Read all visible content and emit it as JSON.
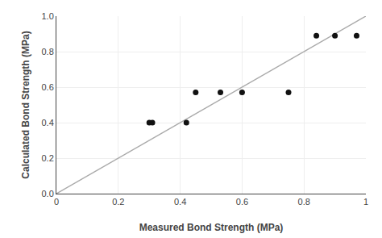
{
  "chart_data": {
    "type": "scatter",
    "xlabel": "Measured Bond Strength (MPa)",
    "ylabel": "Calculated Bond Strength (MPa)",
    "series": [
      {
        "type": "line",
        "color": "#aaaaaa",
        "x": [
          0.0,
          1.0
        ],
        "values": [
          0.0,
          1.0
        ]
      },
      {
        "type": "scatter",
        "marker": "circle",
        "color": "#111111",
        "x": [
          0.3,
          0.31,
          0.42,
          0.45,
          0.53,
          0.6,
          0.75,
          0.84,
          0.9,
          0.97
        ],
        "values": [
          0.4,
          0.4,
          0.4,
          0.57,
          0.57,
          0.57,
          0.57,
          0.89,
          0.89,
          0.89
        ]
      }
    ],
    "xlim": [
      0,
      1.0
    ],
    "ylim": [
      0.0,
      1.0
    ],
    "xticks": [
      0,
      0.2,
      0.4,
      0.6,
      0.8,
      1
    ],
    "yticks": [
      {
        "value": 0.0,
        "label": "0.0"
      },
      0.2,
      0.4,
      0.6,
      0.8,
      {
        "value": 1.0,
        "label": "1.0"
      }
    ],
    "grid": true
  }
}
